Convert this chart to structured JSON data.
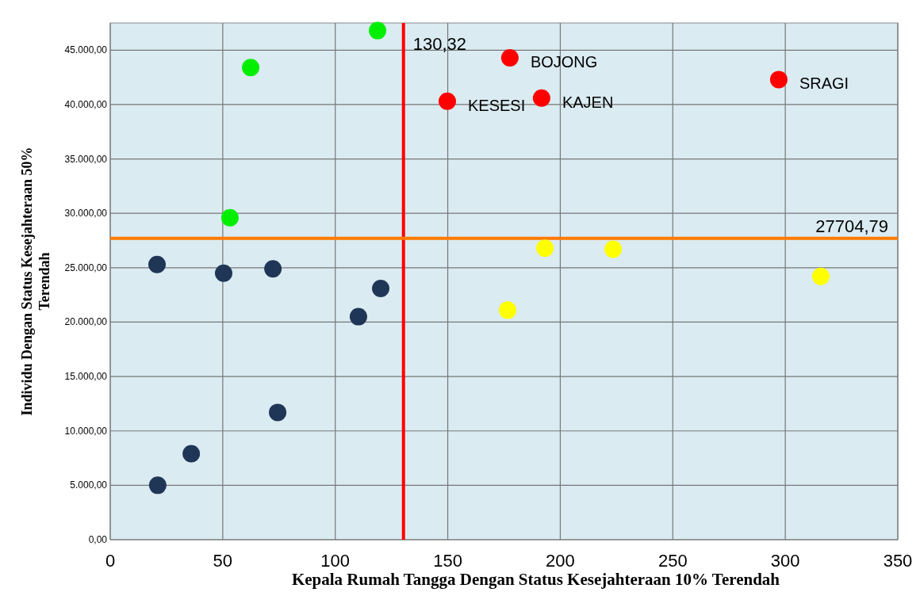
{
  "chart_data": {
    "type": "scatter",
    "xlabel": "Kepala Rumah Tangga Dengan Status Kesejahteraan 10% Terendah",
    "ylabel": "Individu Dengan Status Kesejahteraan 50% Terendah",
    "xlim": [
      0,
      350
    ],
    "xticks": [
      0,
      50,
      100,
      150,
      200,
      250,
      300,
      350
    ],
    "ylim": [
      0,
      47500
    ],
    "yticks": [
      {
        "value": 0,
        "label": "0,00"
      },
      {
        "value": 5000,
        "label": "5.000,00"
      },
      {
        "value": 10000,
        "label": "10.000,00"
      },
      {
        "value": 15000,
        "label": "15.000,00"
      },
      {
        "value": 20000,
        "label": "20.000,00"
      },
      {
        "value": 25000,
        "label": "25.000,00"
      },
      {
        "value": 30000,
        "label": "30.000,00"
      },
      {
        "value": 35000,
        "label": "35.000,00"
      },
      {
        "value": 40000,
        "label": "40.000,00"
      },
      {
        "value": 45000,
        "label": "45.000,00"
      }
    ],
    "grid": true,
    "marker": "circle",
    "series": [
      {
        "color": "#00ee00",
        "x": [
          118.8,
          62.4,
          53.2
        ],
        "values": [
          46800,
          43400,
          29600
        ]
      },
      {
        "color": "#ff0000",
        "x": [
          177.6,
          149.8,
          191.7,
          297.1
        ],
        "values": [
          44300,
          40300,
          40600,
          42300
        ]
      },
      {
        "color": "#ffff00",
        "x": [
          193.2,
          223.5,
          176.6,
          315.8
        ],
        "values": [
          26800,
          26700,
          21100,
          24200
        ]
      },
      {
        "color": "#1f3657",
        "x": [
          20.8,
          50.4,
          72.3,
          120.2,
          110.3,
          74.4,
          36.0,
          21.1
        ],
        "values": [
          25300,
          24500,
          24900,
          23100,
          20500,
          11700,
          7900,
          5000
        ]
      }
    ],
    "ref_lines": [
      {
        "axis": "x",
        "value": 130.32,
        "label": "130,32",
        "color": "#ff0000"
      },
      {
        "axis": "y",
        "value": 27704.79,
        "label": "27704,79",
        "color": "#ff7a00"
      }
    ],
    "annotations": [
      {
        "text": "BOJONG",
        "x": 177.6,
        "y": 44300
      },
      {
        "text": "KESESI",
        "x": 149.8,
        "y": 40300
      },
      {
        "text": "KAJEN",
        "x": 191.7,
        "y": 40600
      },
      {
        "text": "SRAGI",
        "x": 297.1,
        "y": 42300
      }
    ]
  }
}
